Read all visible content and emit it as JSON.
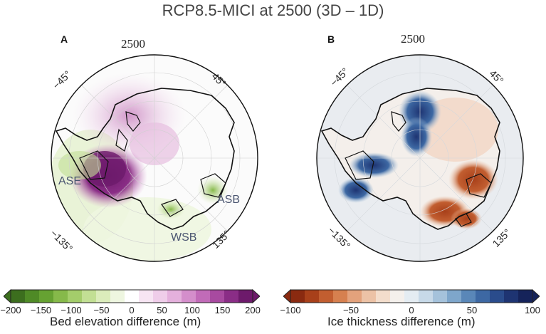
{
  "title": "RCP8.5-MICI at 2500 (3D – 1D)",
  "panels": [
    {
      "letter": "A",
      "year": "2500",
      "lon_labels": [
        "−45°",
        "45°",
        "−135°",
        "135°"
      ],
      "regions": [
        "ASE",
        "ASB",
        "WSB"
      ],
      "colorbar": {
        "label": "Bed elevation difference (m)",
        "ticks": [
          "−200",
          "−150",
          "−100",
          "−50",
          "0",
          "50",
          "100",
          "150",
          "200"
        ],
        "colors": [
          "#3c6e1e",
          "#4f8a26",
          "#66a232",
          "#86b94a",
          "#a4cd6b",
          "#c2df94",
          "#dbecbb",
          "#eef6e0",
          "#ffffff",
          "#f7e5f3",
          "#efcde9",
          "#e4b0dc",
          "#d48ecb",
          "#c16bb8",
          "#a84aa0",
          "#8a2d86",
          "#6d1a6b"
        ],
        "range": [
          -200,
          200
        ]
      }
    },
    {
      "letter": "B",
      "year": "2500",
      "lon_labels": [
        "−45°",
        "45°",
        "−135°",
        "135°"
      ],
      "colorbar": {
        "label": "Ice thickness difference (m)",
        "ticks": [
          "−100",
          "−50",
          "0",
          "50",
          "100"
        ],
        "colors": [
          "#8a2a10",
          "#a8401a",
          "#c25e30",
          "#d6804f",
          "#e3a27c",
          "#ecc2a6",
          "#f3ddcc",
          "#f4f0ec",
          "#e4ecf2",
          "#c7d9e8",
          "#a5c2db",
          "#7ea6cb",
          "#5a87b8",
          "#3d68a3",
          "#2a4c8c",
          "#1e3472",
          "#15235a"
        ],
        "range": [
          -100,
          100
        ]
      }
    }
  ]
}
